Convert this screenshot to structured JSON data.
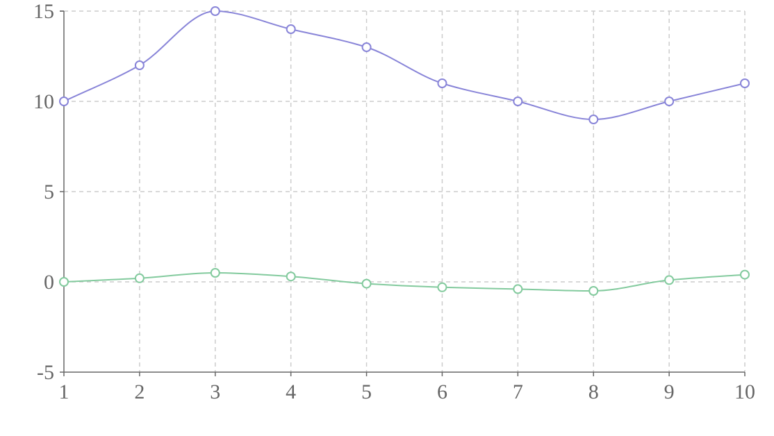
{
  "chart_data": {
    "type": "line",
    "x": [
      1,
      2,
      3,
      4,
      5,
      6,
      7,
      8,
      9,
      10
    ],
    "x_ticks": [
      "1",
      "2",
      "3",
      "4",
      "5",
      "6",
      "7",
      "8",
      "9",
      "10"
    ],
    "y_ticks": [
      "-5",
      "0",
      "5",
      "10",
      "15"
    ],
    "xlim": [
      1,
      10
    ],
    "ylim": [
      -5,
      15
    ],
    "grid": true,
    "grid_style": "dashed",
    "curve": "smooth",
    "series": [
      {
        "color": "#8884d8",
        "values": [
          10,
          12,
          15,
          14,
          13,
          11,
          10,
          9,
          10,
          11
        ]
      },
      {
        "color": "#82ca9d",
        "values": [
          0,
          0.2,
          0.5,
          0.3,
          -0.1,
          -0.3,
          -0.4,
          -0.5,
          0.1,
          0.4
        ]
      }
    ]
  }
}
